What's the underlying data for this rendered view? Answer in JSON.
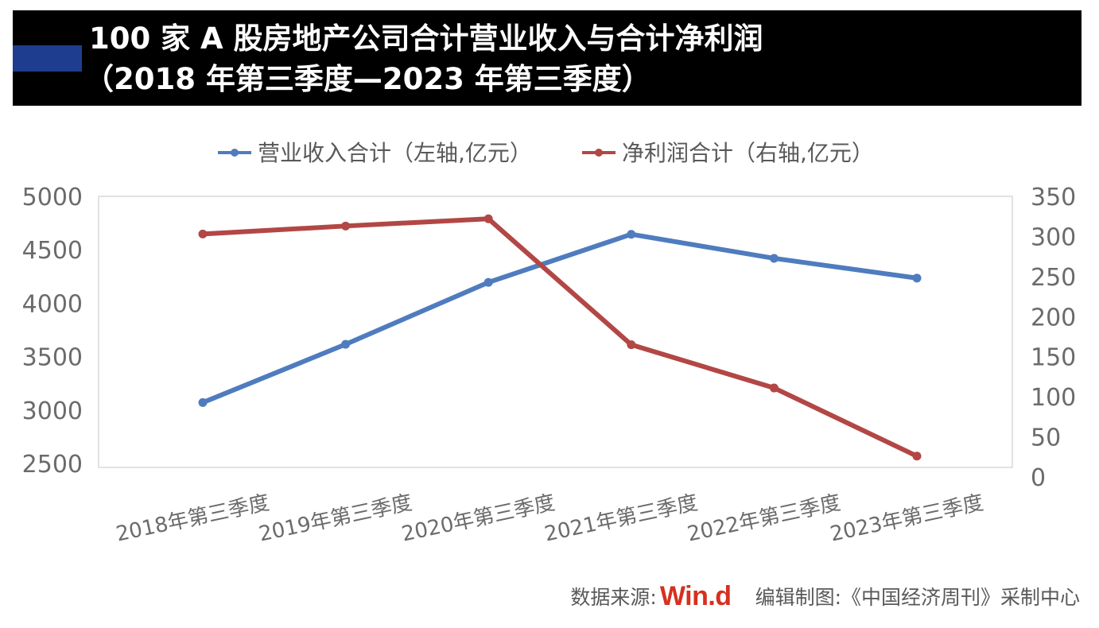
{
  "title": {
    "line1": "100 家 A 股房地产公司合计营业收入与合计净利润",
    "line2": "（2018 年第三季度—2023 年第三季度）"
  },
  "footer": {
    "source_label": "数据来源:",
    "source_brand": "Win.d",
    "editor": "编辑制图:《中国经济周刊》采制中心"
  },
  "colors": {
    "revenue": "#4f7cbf",
    "profit": "#b24745",
    "title_bg": "#000000",
    "accent": "#1e3d8f"
  },
  "chart_data": {
    "type": "line",
    "categories": [
      "2018年第三季度",
      "2019年第三季度",
      "2020年第三季度",
      "2021年第三季度",
      "2022年第三季度",
      "2023年第三季度"
    ],
    "series": [
      {
        "name": "营业收入合计（左轴,亿元）",
        "axis": "left",
        "color": "#4f7cbf",
        "values": [
          3070,
          3615,
          4195,
          4645,
          4420,
          4235
        ]
      },
      {
        "name": "净利润合计（右轴,亿元）",
        "axis": "right",
        "color": "#b24745",
        "values": [
          303,
          313,
          322,
          165,
          111,
          26
        ]
      }
    ],
    "left_axis": {
      "ylim": [
        2500,
        5000
      ],
      "ticks": [
        2500,
        3000,
        3500,
        4000,
        4500,
        5000
      ]
    },
    "right_axis": {
      "ylim": [
        0,
        350
      ],
      "ticks": [
        0,
        50,
        100,
        150,
        200,
        250,
        300,
        350
      ]
    },
    "grid": false,
    "legend_position": "top"
  }
}
